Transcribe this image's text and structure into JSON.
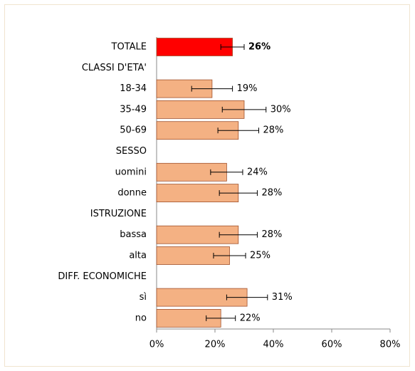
{
  "chart_data": {
    "type": "hbar",
    "categories": [
      "TOTALE",
      "CLASSI D'ETA'",
      "18-34",
      "35-49",
      "50-69",
      "SESSO",
      "uomini",
      "donne",
      "ISTRUZIONE",
      "bassa",
      "alta",
      "DIFF. ECONOMICHE",
      "sì",
      "no"
    ],
    "values": [
      26,
      null,
      19,
      30,
      28,
      null,
      24,
      28,
      null,
      28,
      25,
      null,
      31,
      22
    ],
    "value_labels": [
      "26%",
      null,
      "19%",
      "30%",
      "28%",
      null,
      "24%",
      "28%",
      null,
      "28%",
      "25%",
      null,
      "31%",
      "22%"
    ],
    "errors": [
      4,
      null,
      7,
      7.5,
      7,
      null,
      5.5,
      6.5,
      null,
      6.5,
      5.5,
      null,
      7,
      5
    ],
    "colors": [
      "#ff0000",
      null,
      "#f4b183",
      "#f4b183",
      "#f4b183",
      null,
      "#f4b183",
      "#f4b183",
      null,
      "#f4b183",
      "#f4b183",
      null,
      "#f4b183",
      "#f4b183"
    ],
    "xlim": [
      0,
      80
    ],
    "xticks": [
      {
        "value": 0,
        "label": "0%"
      },
      {
        "value": 20,
        "label": "20%"
      },
      {
        "value": 40,
        "label": "40%"
      },
      {
        "value": 60,
        "label": "60%"
      },
      {
        "value": 80,
        "label": "80%"
      }
    ]
  }
}
